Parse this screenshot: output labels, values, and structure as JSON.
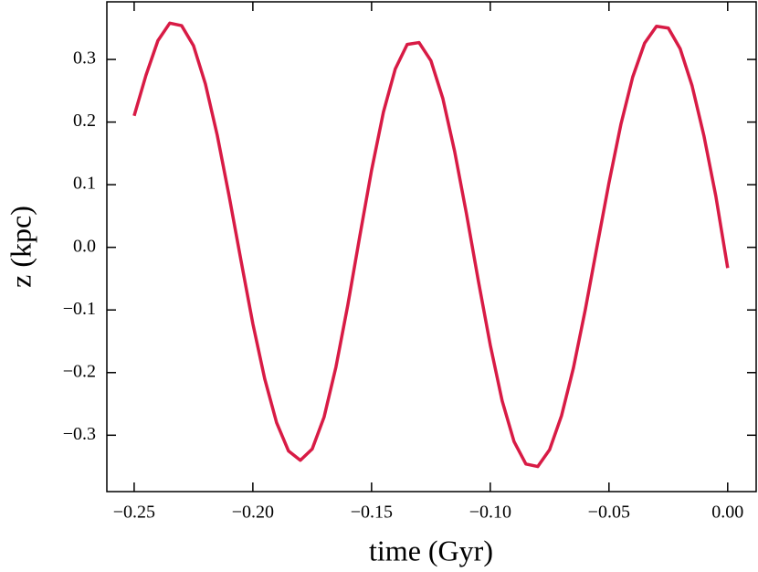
{
  "chart_data": {
    "type": "line",
    "x_label": "time (Gyr)",
    "y_label": "z (kpc)",
    "x": [
      -0.25,
      -0.245,
      -0.24,
      -0.235,
      -0.23,
      -0.225,
      -0.22,
      -0.215,
      -0.21,
      -0.205,
      -0.2,
      -0.195,
      -0.19,
      -0.185,
      -0.18,
      -0.175,
      -0.17,
      -0.165,
      -0.16,
      -0.155,
      -0.15,
      -0.145,
      -0.14,
      -0.135,
      -0.13,
      -0.125,
      -0.12,
      -0.115,
      -0.11,
      -0.105,
      -0.1,
      -0.095,
      -0.09,
      -0.085,
      -0.08,
      -0.075,
      -0.07,
      -0.065,
      -0.06,
      -0.055,
      -0.05,
      -0.045,
      -0.04,
      -0.035,
      -0.03,
      -0.025,
      -0.02,
      -0.015,
      -0.01,
      -0.005,
      0.0
    ],
    "series": [
      {
        "color": "#d81b45",
        "values": [
          0.21,
          0.275,
          0.33,
          0.358,
          0.354,
          0.322,
          0.261,
          0.179,
          0.082,
          -0.021,
          -0.122,
          -0.21,
          -0.28,
          -0.325,
          -0.34,
          -0.322,
          -0.271,
          -0.191,
          -0.092,
          0.017,
          0.123,
          0.216,
          0.285,
          0.324,
          0.327,
          0.298,
          0.238,
          0.153,
          0.053,
          -0.054,
          -0.156,
          -0.245,
          -0.31,
          -0.346,
          -0.35,
          -0.323,
          -0.269,
          -0.193,
          -0.1,
          0.002,
          0.103,
          0.196,
          0.272,
          0.326,
          0.353,
          0.35,
          0.317,
          0.258,
          0.178,
          0.082,
          -0.033
        ]
      }
    ],
    "xlim": [
      -0.2615,
      0.012
    ],
    "ylim": [
      -0.39,
      0.392
    ],
    "xticks": [
      {
        "value": -0.25,
        "label": "−0.25"
      },
      {
        "value": -0.2,
        "label": "−0.20"
      },
      {
        "value": -0.15,
        "label": "−0.15"
      },
      {
        "value": -0.1,
        "label": "−0.10"
      },
      {
        "value": -0.05,
        "label": "−0.05"
      },
      {
        "value": 0,
        "label": "0.00"
      }
    ],
    "yticks": [
      {
        "value": -0.3,
        "label": "−0.3"
      },
      {
        "value": -0.2,
        "label": "−0.2"
      },
      {
        "value": -0.1,
        "label": "−0.1"
      },
      {
        "value": 0,
        "label": "0.0"
      },
      0.1,
      0.2,
      0.3
    ],
    "grid": false
  }
}
